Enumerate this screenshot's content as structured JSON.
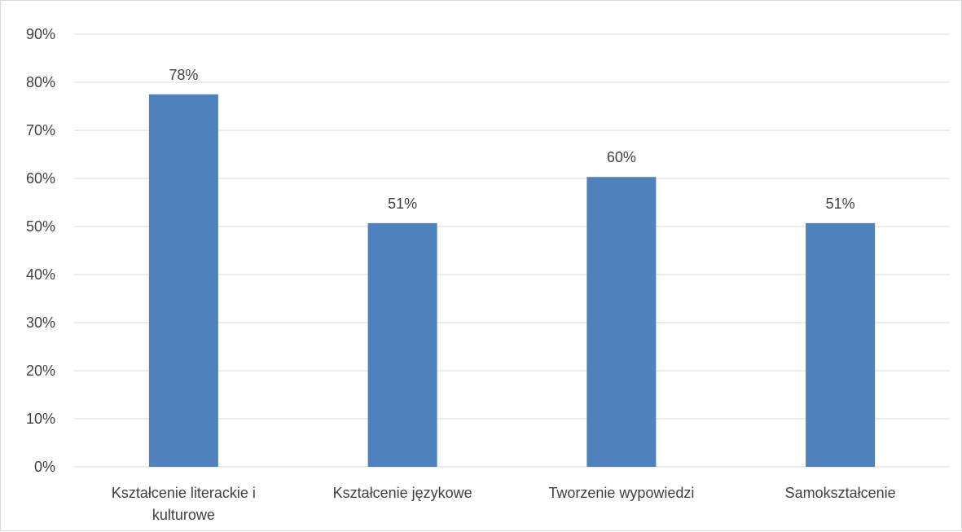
{
  "chart_data": {
    "type": "bar",
    "categories": [
      [
        "Kształcenie literackie i",
        "kulturowe"
      ],
      [
        "Kształcenie językowe"
      ],
      [
        "Tworzenie wypowiedzi"
      ],
      [
        "Samokształcenie"
      ]
    ],
    "values": [
      77.5,
      50.7,
      60.3,
      50.7
    ],
    "data_labels": [
      "78%",
      "51%",
      "60%",
      "51%"
    ],
    "ylim": [
      0,
      90
    ],
    "yticks": [
      "0%",
      "10%",
      "20%",
      "30%",
      "40%",
      "50%",
      "60%",
      "70%",
      "80%",
      "90%"
    ],
    "grid": true,
    "legend": "none",
    "bar_color": "#4f81bd",
    "grid_color": "#d9d9d9"
  }
}
